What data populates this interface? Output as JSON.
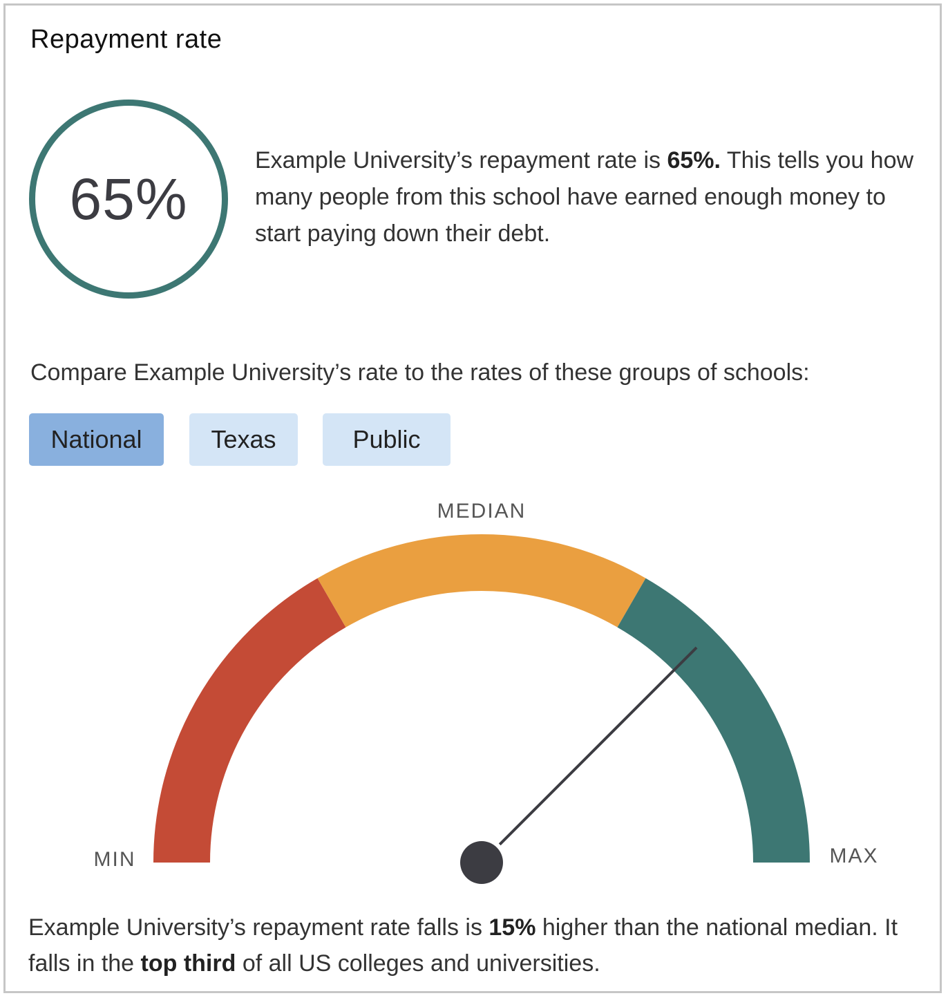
{
  "card": {
    "title": "Repayment rate"
  },
  "rate": {
    "value": "65%",
    "summary": {
      "pre": "Example University’s repayment rate is ",
      "bold": "65%.",
      "post": " This tells you how many people from this school have earned enough money to start paying down their debt."
    }
  },
  "compare": {
    "label": "Compare Example University’s rate to the rates of these groups of schools:",
    "tabs": [
      {
        "label": "National",
        "selected": true
      },
      {
        "label": "Texas",
        "selected": false
      },
      {
        "label": "Public",
        "selected": false
      }
    ]
  },
  "gauge": {
    "min_label": "MIN",
    "median_label": "MEDIAN",
    "max_label": "MAX",
    "segment_colors": [
      "#c44b36",
      "#ea9f40",
      "#3d7773"
    ],
    "needle_color": "#3c3c42",
    "level": 0.75
  },
  "footer": {
    "p1": "Example University’s repayment rate falls is ",
    "b1": "15%",
    "p2": " higher than the national median. It falls in the ",
    "b2": "top third",
    "p3": " of all US colleges and universities."
  }
}
